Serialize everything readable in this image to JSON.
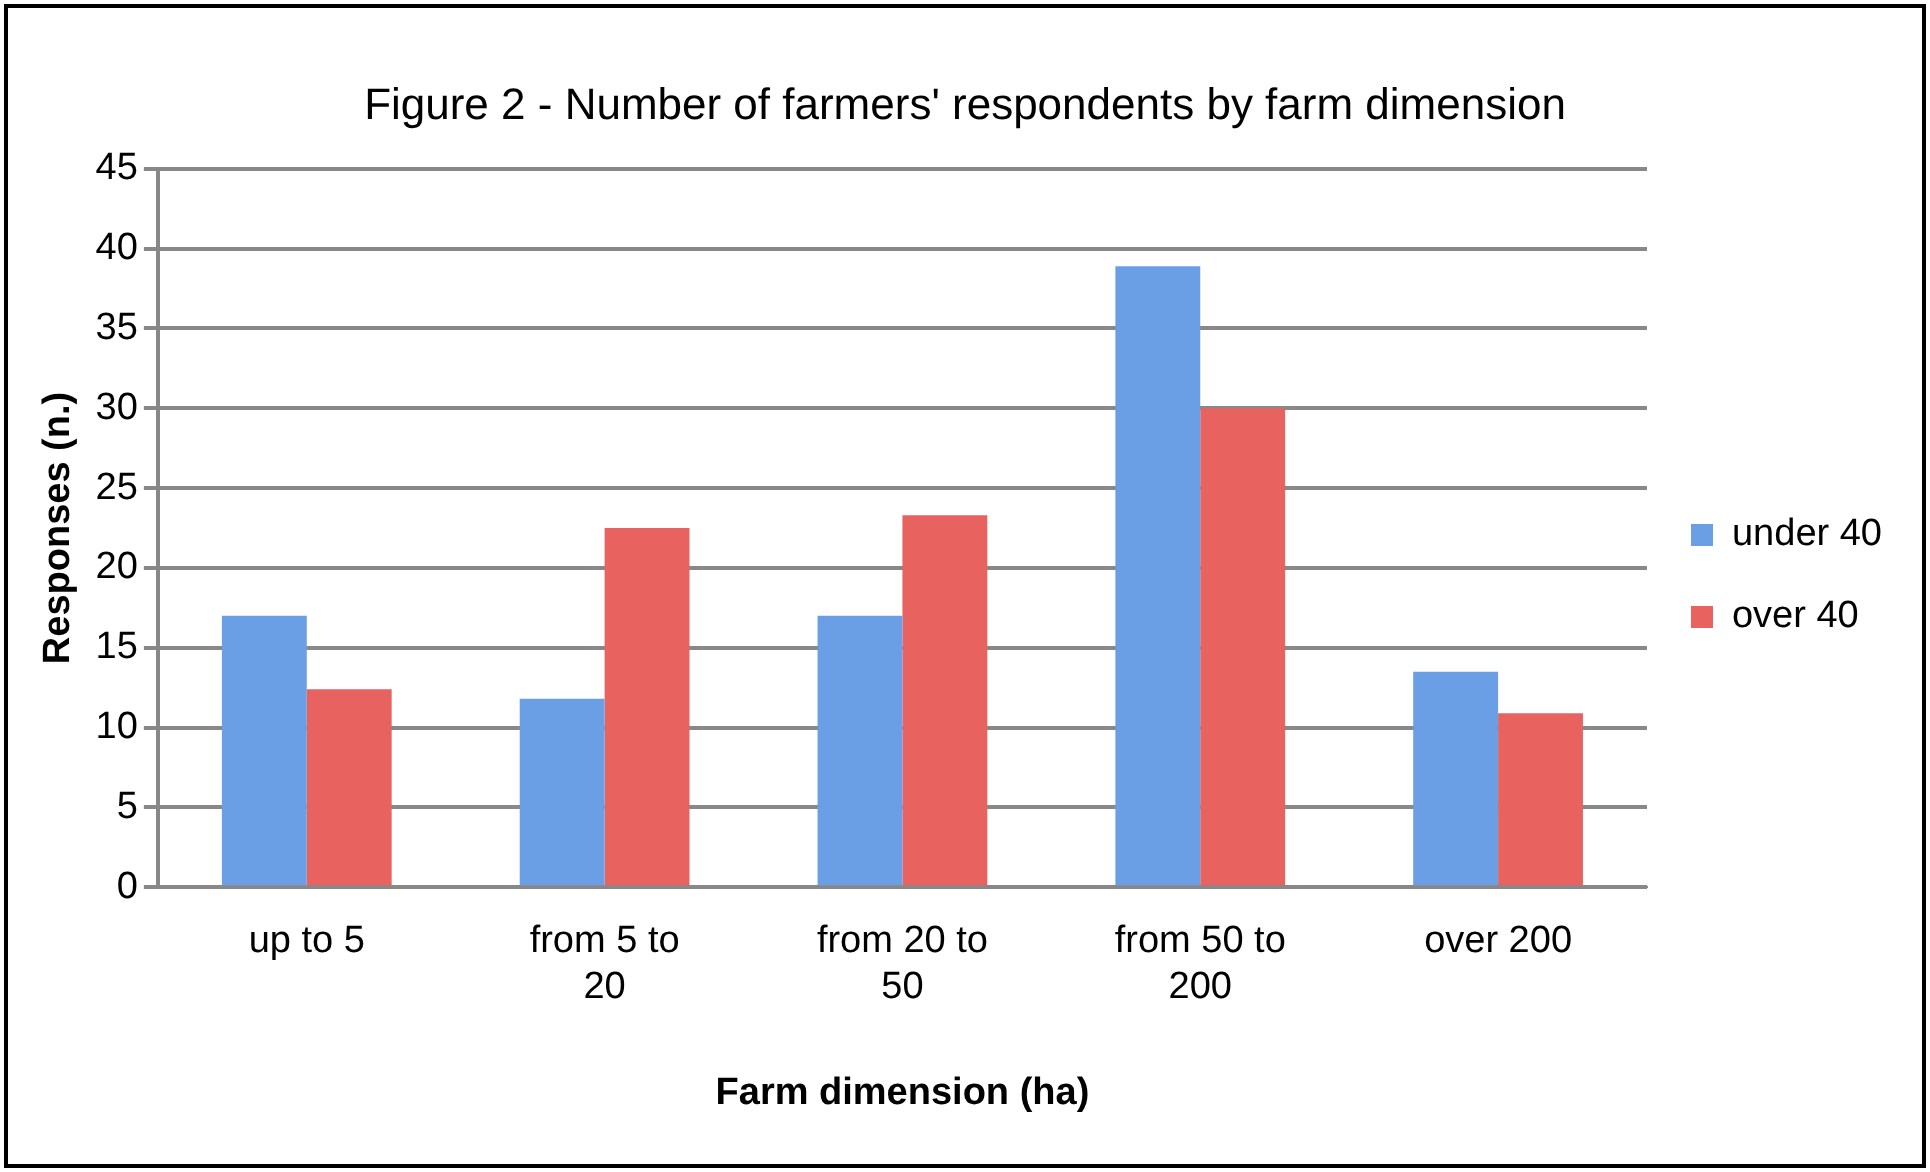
{
  "chart_data": {
    "type": "bar",
    "title": "Figure 2 - Number of farmers' respondents by farm dimension",
    "xlabel": "Farm dimension (ha)",
    "ylabel": "Responses (n.)",
    "categories": [
      "up to 5",
      "from 5 to 20",
      "from 20 to 50",
      "from 50 to 200",
      "over 200"
    ],
    "series": [
      {
        "name": "under 40",
        "color": "#6a9fe6",
        "values": [
          17,
          11.8,
          17,
          38.9,
          13.5
        ]
      },
      {
        "name": "over 40",
        "color": "#e8625f",
        "values": [
          12.4,
          22.5,
          23.3,
          30,
          10.9
        ]
      }
    ],
    "ylim": [
      0,
      45
    ],
    "yticks": [
      0,
      5,
      10,
      15,
      20,
      25,
      30,
      35,
      40,
      45
    ],
    "grid": "y",
    "legend": "right"
  }
}
